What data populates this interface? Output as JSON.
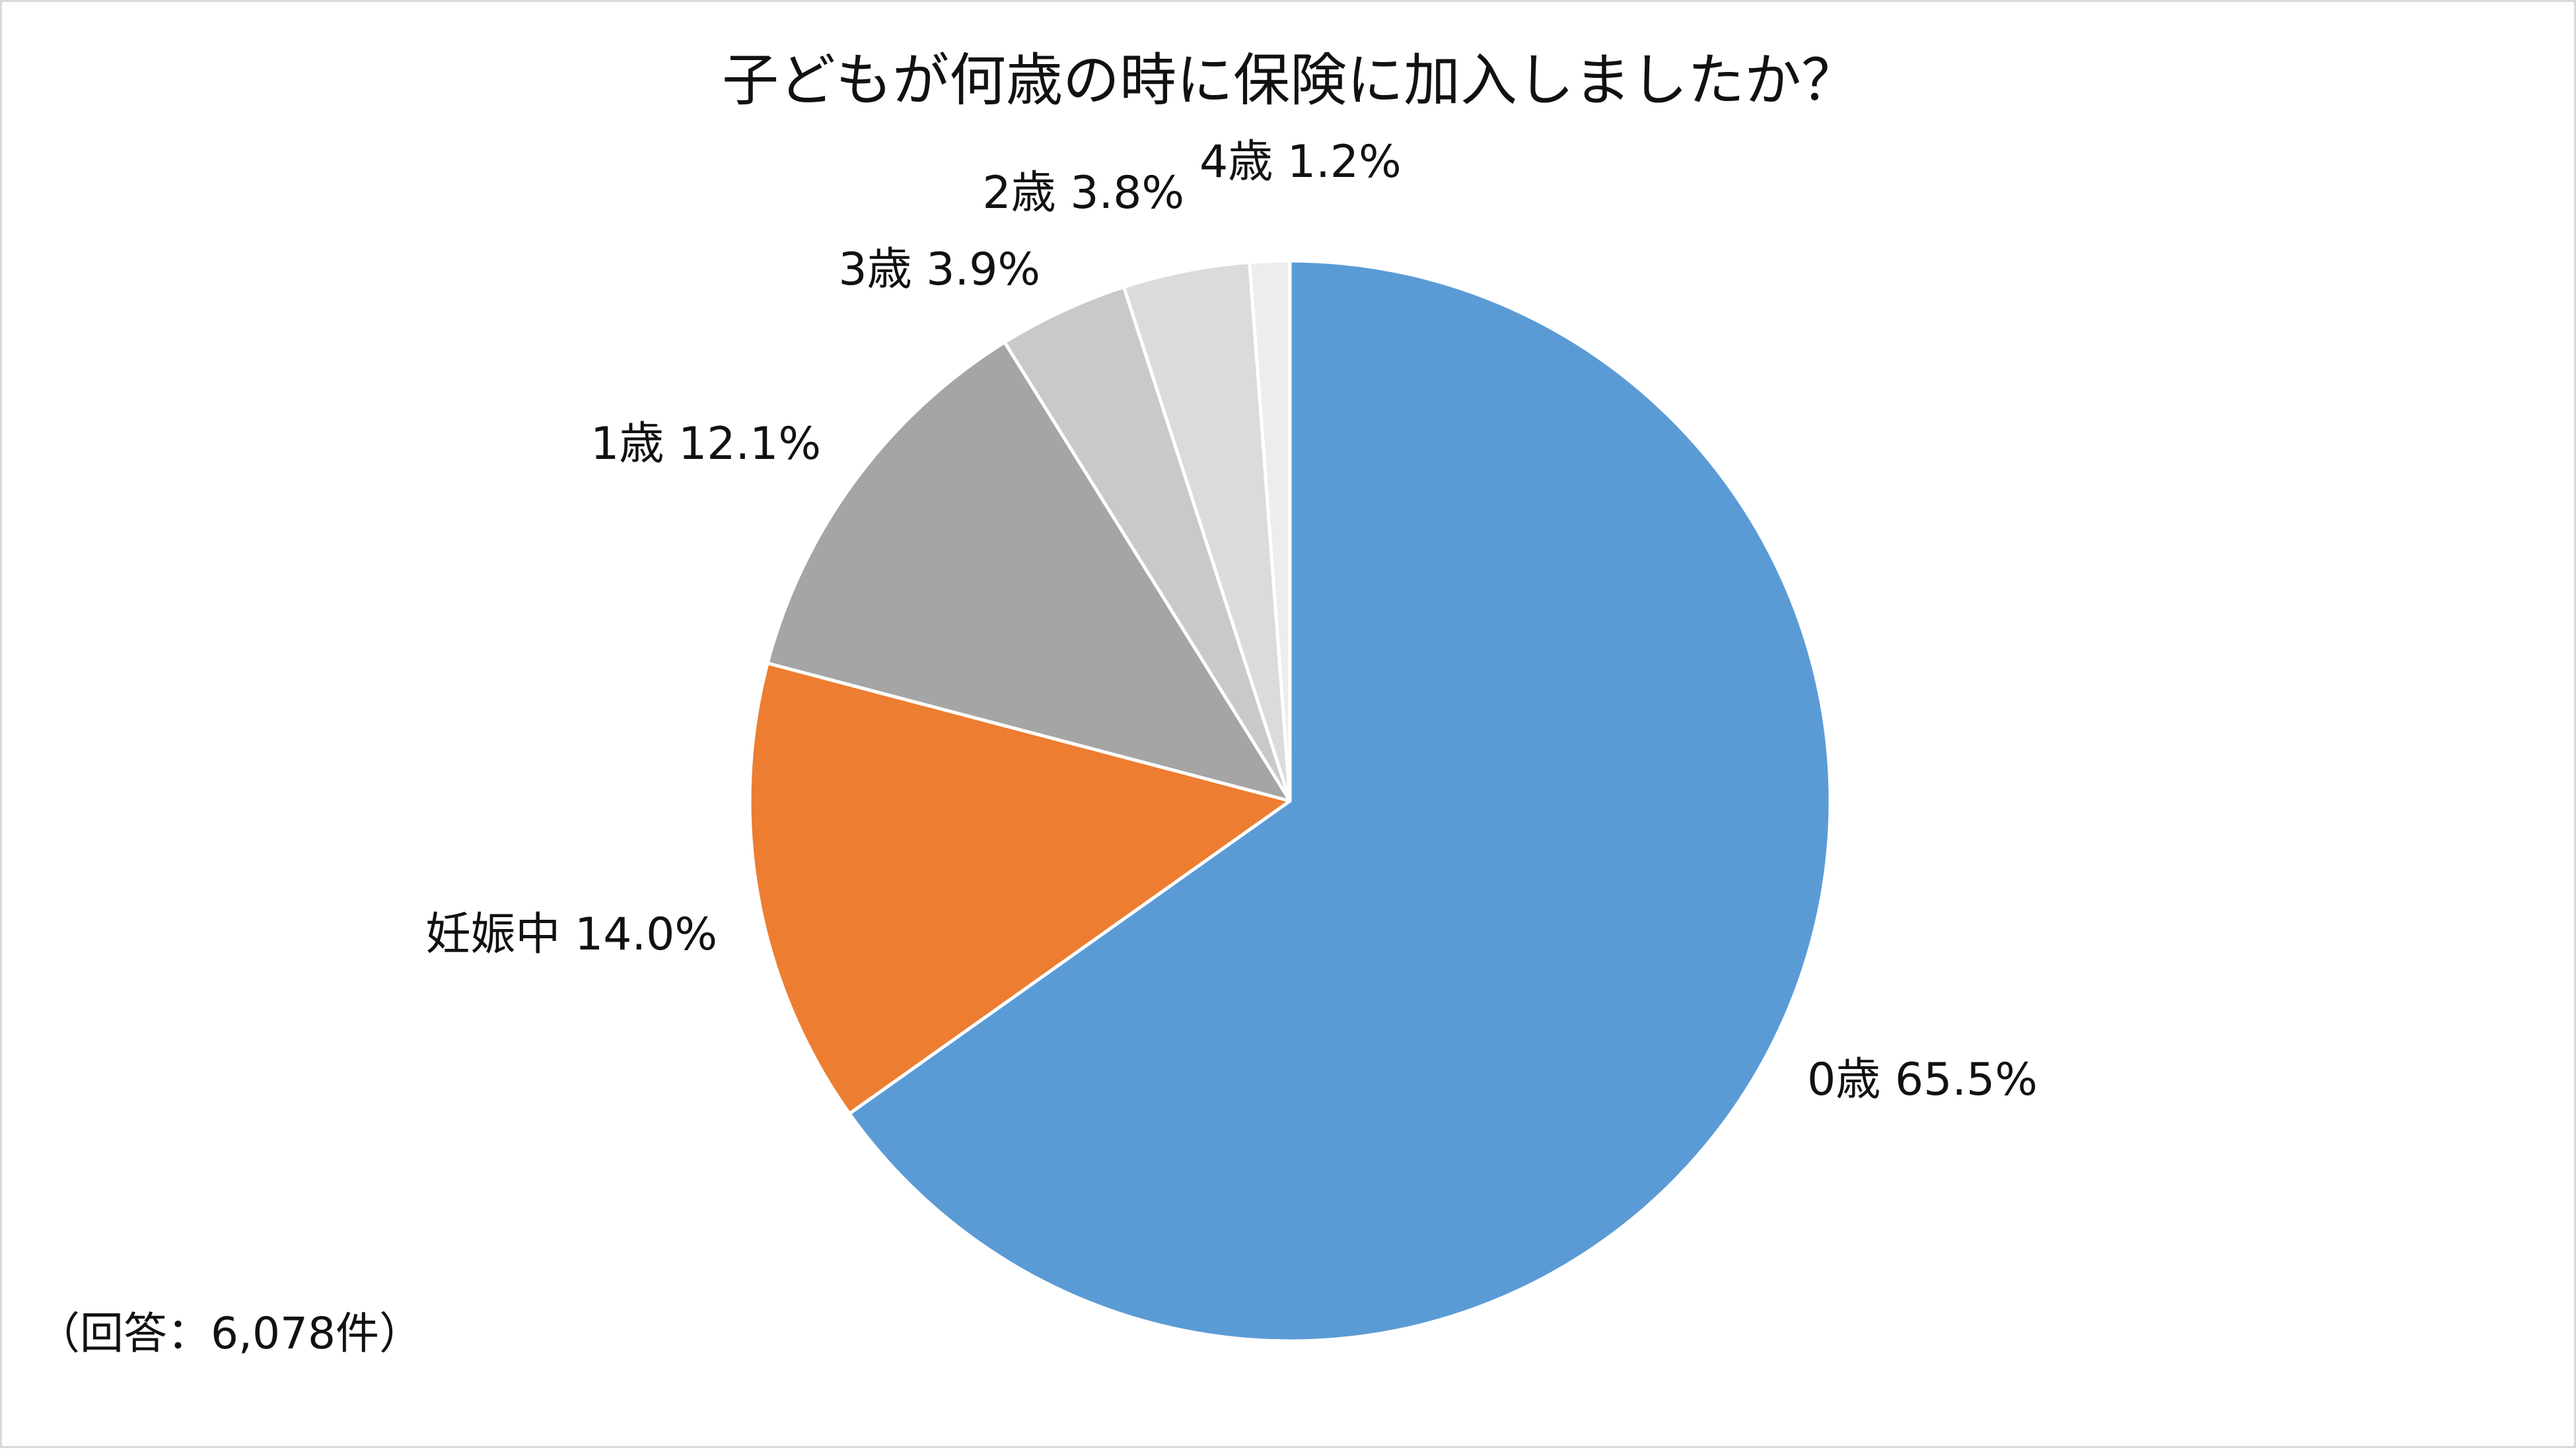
{
  "chart_data": {
    "type": "pie",
    "title": "子どもが何歳の時に保険に加入しましたか？",
    "note": "（回答：6,078件）",
    "slices": [
      {
        "label": "0歳 65.5%",
        "category": "0歳",
        "value": 65.5,
        "color": "#5B9BD5"
      },
      {
        "label": "妊娠中 14.0%",
        "category": "妊娠中",
        "value": 14.0,
        "color": "#ED7D31"
      },
      {
        "label": "1歳 12.1%",
        "category": "1歳",
        "value": 12.1,
        "color": "#A5A5A5"
      },
      {
        "label": "3歳 3.9%",
        "category": "3歳",
        "value": 3.9,
        "color": "#C9C9C9"
      },
      {
        "label": "2歳 3.8%",
        "category": "2歳",
        "value": 3.8,
        "color": "#DBDBDB"
      },
      {
        "label": "4歳 1.2%",
        "category": "4歳",
        "value": 1.2,
        "color": "#EDEDED"
      }
    ],
    "start_angle": "12 o'clock",
    "direction": "clockwise",
    "legend": "none",
    "slice_separator_color": "#ffffff"
  }
}
